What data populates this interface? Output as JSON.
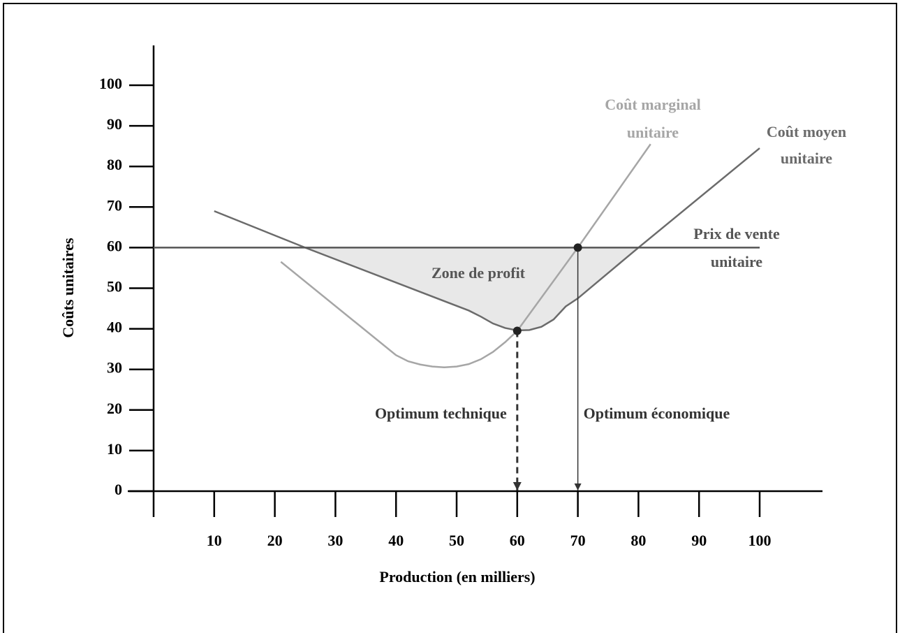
{
  "chart_data": {
    "type": "line",
    "xlabel": "Production (en milliers)",
    "ylabel": "Coûts unitaires",
    "xlim": [
      0,
      100
    ],
    "ylim": [
      0,
      100
    ],
    "xticks": [
      10,
      20,
      30,
      40,
      50,
      60,
      70,
      80,
      90,
      100
    ],
    "yticks": [
      0,
      10,
      20,
      30,
      40,
      50,
      60,
      70,
      80,
      90,
      100
    ],
    "series": [
      {
        "name": [
          "Coût marginal",
          "unitaire"
        ],
        "color": "#a6a6a6",
        "x": [
          21,
          40,
          42,
          44,
          46,
          48,
          50,
          52,
          54,
          56,
          58,
          60,
          70,
          82
        ],
        "values": [
          56.5,
          33.5,
          32,
          31.2,
          30.7,
          30.5,
          30.7,
          31.3,
          32.5,
          34.3,
          36.7,
          39.5,
          60,
          85.5
        ]
      },
      {
        "name": [
          "Coût moyen",
          "unitaire"
        ],
        "color": "#6b6b6b",
        "x": [
          10,
          25,
          52,
          54,
          56,
          58,
          60,
          62,
          64,
          66,
          68,
          70,
          80,
          100
        ],
        "values": [
          69,
          60,
          44.5,
          43,
          41.3,
          40.2,
          39.6,
          39.7,
          40.5,
          42.3,
          45.5,
          47.5,
          60,
          84.5
        ]
      },
      {
        "name": [
          "Prix de vente",
          "unitaire"
        ],
        "color": "#555555",
        "x": [
          0,
          100
        ],
        "values": [
          60,
          60
        ]
      }
    ],
    "zone_label": "Zone de profit",
    "zone_color": "#e8e8e8",
    "points": [
      {
        "name": "Optimum technique",
        "x": 60,
        "y": 39.5,
        "style": "dashed"
      },
      {
        "name": "Optimum économique",
        "x": 70,
        "y": 60,
        "style": "solid"
      }
    ]
  }
}
